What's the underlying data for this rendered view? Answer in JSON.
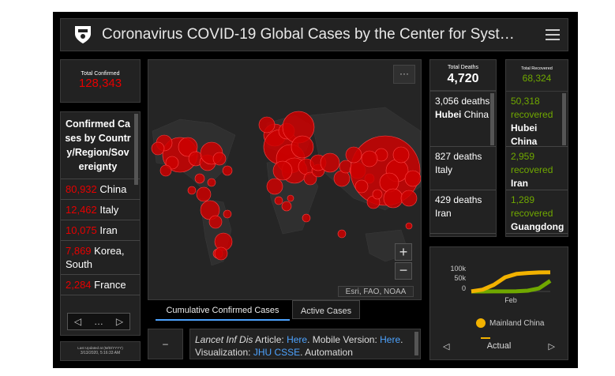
{
  "header": {
    "title": "Coronavirus COVID-19 Global Cases by the Center for Syst…"
  },
  "confirmed": {
    "label": "Total Confirmed",
    "value": "128,343"
  },
  "country_list": {
    "heading": "Confirmed Cases by Country/Region/Sovereignty",
    "items": [
      {
        "count": "80,932",
        "name": "China"
      },
      {
        "count": "12,462",
        "name": "Italy"
      },
      {
        "count": "10,075",
        "name": "Iran"
      },
      {
        "count": "7,869",
        "name": "Korea, South"
      },
      {
        "count": "2,284",
        "name": "France"
      }
    ],
    "pager": {
      "prev": "◁",
      "dots": "…",
      "next": "▷"
    }
  },
  "last_updated": {
    "label": "Last Updated at (M/D/YYYY)",
    "value": "3/13/2020, 5:16:33 AM"
  },
  "deaths": {
    "label": "Total Deaths",
    "value": "4,720",
    "items": [
      {
        "count": "3,056",
        "unit": "deaths",
        "place_bold": "Hubei",
        "place_rest": "China"
      },
      {
        "count": "827",
        "unit": "deaths",
        "place_bold": "",
        "place_rest": "Italy"
      },
      {
        "count": "429",
        "unit": "deaths",
        "place_bold": "",
        "place_rest": "Iran"
      }
    ]
  },
  "recovered": {
    "label": "Total Recovered",
    "value": "68,324",
    "items": [
      {
        "count": "50,318",
        "unit": "recovered",
        "place": "Hubei China"
      },
      {
        "count": "2,959",
        "unit": "recovered",
        "place": "Iran"
      },
      {
        "count": "1,289",
        "unit": "recovered",
        "place": "Guangdong China"
      }
    ]
  },
  "map": {
    "attribution": "Esri, FAO, NOAA",
    "more_label": "···",
    "zoom_in": "+",
    "zoom_out": "−",
    "tabs": [
      "Cumulative Confirmed Cases",
      "Active Cases"
    ]
  },
  "info": {
    "collapse": "–",
    "text_1": "Lancet Inf Dis",
    "text_2": " Article: ",
    "link_1": "Here",
    "text_3": ". Mobile Version: ",
    "link_2": "Here",
    "text_4": ". Visualization: ",
    "link_3": "JHU CSSE",
    "text_5": ". Automation"
  },
  "chart": {
    "yticks": [
      "100k",
      "50k",
      "0"
    ],
    "xlabel": "Feb",
    "legend": "Mainland China",
    "footer": {
      "prev": "◁",
      "label": "Actual",
      "next": "▷"
    },
    "colors": {
      "mainland": "#f2b200",
      "other": "#70a800"
    }
  },
  "chart_data": {
    "type": "line",
    "x": [
      "2020-01-22",
      "2020-01-29",
      "2020-02-05",
      "2020-02-12",
      "2020-02-19",
      "2020-02-26",
      "2020-03-04",
      "2020-03-11"
    ],
    "series": [
      {
        "name": "Mainland China",
        "values": [
          550,
          7700,
          28000,
          60000,
          74000,
          78000,
          80400,
          80900
        ]
      },
      {
        "values": [
          10,
          80,
          300,
          500,
          1100,
          3500,
          13000,
          45000
        ]
      }
    ],
    "ylim": [
      0,
      100000
    ]
  }
}
